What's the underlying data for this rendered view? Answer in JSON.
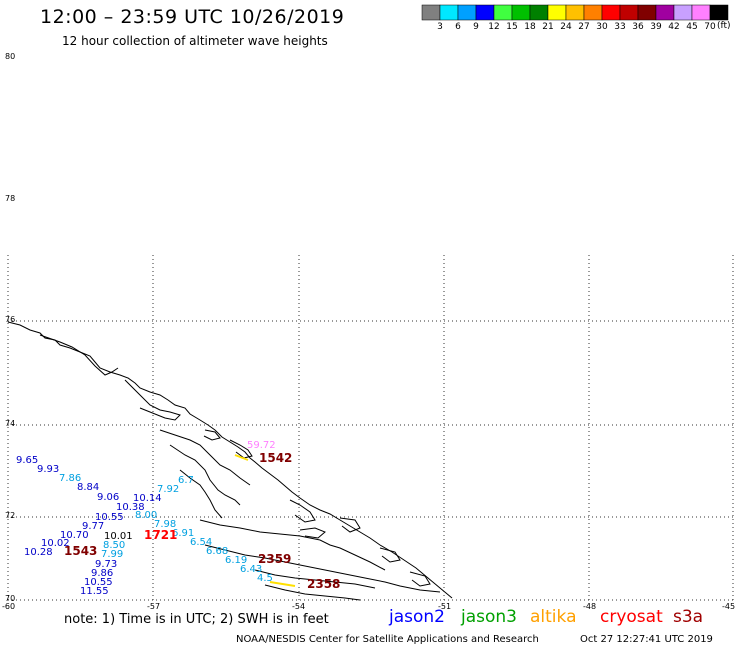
{
  "header": {
    "title": "12:00 – 23:59 UTC 10/26/2019",
    "subtitle": "12 hour collection of altimeter wave heights"
  },
  "colorbar": {
    "unit": "(ft)",
    "swatches": [
      {
        "color": "#808080",
        "label": "3"
      },
      {
        "color": "#00e8ff",
        "label": "6"
      },
      {
        "color": "#00a0ff",
        "label": "9"
      },
      {
        "color": "#0000ff",
        "label": "12"
      },
      {
        "color": "#40ff40",
        "label": "15"
      },
      {
        "color": "#00c000",
        "label": "18"
      },
      {
        "color": "#008000",
        "label": "21"
      },
      {
        "color": "#ffff00",
        "label": "24"
      },
      {
        "color": "#ffc000",
        "label": "27"
      },
      {
        "color": "#ff8000",
        "label": "30"
      },
      {
        "color": "#ff0000",
        "label": "33"
      },
      {
        "color": "#c00000",
        "label": "36"
      },
      {
        "color": "#800000",
        "label": "39"
      },
      {
        "color": "#a000a0",
        "label": "42"
      },
      {
        "color": "#c8a0ff",
        "label": "45"
      },
      {
        "color": "#ff80ff",
        "label": "70"
      },
      {
        "color": "#000000",
        "label": ""
      }
    ]
  },
  "map": {
    "lat_labels": [
      "80",
      "78",
      "76",
      "74",
      "72",
      "70"
    ],
    "lon_labels": [
      "-60",
      "-57",
      "-54",
      "-51",
      "-48",
      "-45"
    ]
  },
  "observations": [
    {
      "text": "9.65",
      "color": "#0000c8"
    },
    {
      "text": "9.93",
      "color": "#0000c8"
    },
    {
      "text": "7.86",
      "color": "#00a0e0"
    },
    {
      "text": "8.84",
      "color": "#0000c8"
    },
    {
      "text": "9.06",
      "color": "#0000c8"
    },
    {
      "text": "10.14",
      "color": "#0000c8"
    },
    {
      "text": "10.38",
      "color": "#0000c8"
    },
    {
      "text": "8.00",
      "color": "#00a0e0"
    },
    {
      "text": "10.55",
      "color": "#0000c8"
    },
    {
      "text": "7.92",
      "color": "#00a0e0"
    },
    {
      "text": "6.7",
      "color": "#00a0e0"
    },
    {
      "text": "9.77",
      "color": "#0000c8"
    },
    {
      "text": "7.98",
      "color": "#00a0e0"
    },
    {
      "text": "10.70",
      "color": "#0000c8"
    },
    {
      "text": "10.01",
      "color": "#000000"
    },
    {
      "text": "6.91",
      "color": "#00a0e0"
    },
    {
      "text": "10.02",
      "color": "#0000c8"
    },
    {
      "text": "8.50",
      "color": "#00a0e0"
    },
    {
      "text": "6.54",
      "color": "#00a0e0"
    },
    {
      "text": "10.28",
      "color": "#0000c8"
    },
    {
      "text": "7.99",
      "color": "#00a0e0"
    },
    {
      "text": "6.68",
      "color": "#00a0e0"
    },
    {
      "text": "9.73",
      "color": "#0000c8"
    },
    {
      "text": "6.19",
      "color": "#00a0e0"
    },
    {
      "text": "9.86",
      "color": "#0000c8"
    },
    {
      "text": "6.43",
      "color": "#00a0e0"
    },
    {
      "text": "10.55",
      "color": "#0000c8"
    },
    {
      "text": "4.5",
      "color": "#00a0e0"
    },
    {
      "text": "11.55",
      "color": "#0000c8"
    },
    {
      "text": "59.72",
      "color": "#ff80ff"
    }
  ],
  "passes": [
    {
      "text": "1542",
      "color": "#800000"
    },
    {
      "text": "1721",
      "color": "#ff0000"
    },
    {
      "text": "1543",
      "color": "#800000"
    },
    {
      "text": "2359",
      "color": "#800000"
    },
    {
      "text": "2358",
      "color": "#800000"
    }
  ],
  "note": "note:  1) Time is in UTC;  2) SWH is in feet",
  "satellites": [
    {
      "name": "jason2",
      "color": "#0000ff"
    },
    {
      "name": "jason3",
      "color": "#00a000"
    },
    {
      "name": "altika",
      "color": "#ffa000"
    },
    {
      "name": "cryosat",
      "color": "#ff0000"
    },
    {
      "name": "s3a",
      "color": "#a00000"
    }
  ],
  "footer": {
    "credit": "NOAA/NESDIS Center for Satellite Applications and Research",
    "timestamp": "Oct 27 12:27:41 UTC 2019"
  }
}
